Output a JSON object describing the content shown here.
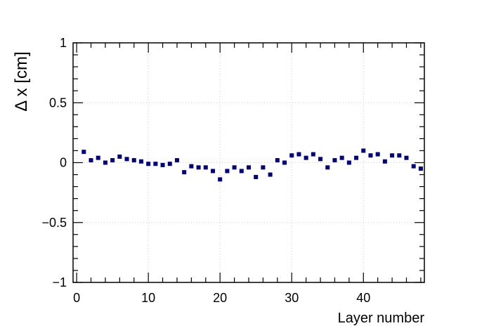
{
  "chart_data": {
    "type": "scatter",
    "title": "",
    "xlabel": "Layer number",
    "ylabel": "Δ x [cm]",
    "xlim": [
      -0.5,
      48.5
    ],
    "ylim": [
      -1,
      1
    ],
    "x_ticks": [
      {
        "value": 0,
        "label": "0"
      },
      {
        "value": 10,
        "label": "10"
      },
      {
        "value": 20,
        "label": "20"
      },
      {
        "value": 30,
        "label": "30"
      },
      {
        "value": 40,
        "label": "40"
      }
    ],
    "y_ticks": [
      {
        "value": -1,
        "label": "−1"
      },
      {
        "value": -0.5,
        "label": "−0.5"
      },
      {
        "value": 0,
        "label": "0"
      },
      {
        "value": 0.5,
        "label": "0.5"
      },
      {
        "value": 1,
        "label": "1"
      }
    ],
    "grid": true,
    "legend": "none",
    "marker_color": "#000080",
    "series": [
      {
        "x": [
          1,
          2,
          3,
          4,
          5,
          6,
          7,
          8,
          9,
          10,
          11,
          12,
          13,
          14,
          15,
          16,
          17,
          18,
          19,
          20,
          21,
          22,
          23,
          24,
          25,
          26,
          27,
          28,
          29,
          30,
          31,
          32,
          33,
          34,
          35,
          36,
          37,
          38,
          39,
          40,
          41,
          42,
          43,
          44,
          45,
          46,
          47,
          48
        ],
        "y": [
          0.09,
          0.02,
          0.04,
          0.0,
          0.02,
          0.05,
          0.03,
          0.02,
          0.01,
          -0.01,
          -0.01,
          -0.02,
          -0.01,
          0.02,
          -0.08,
          -0.03,
          -0.04,
          -0.04,
          -0.07,
          -0.14,
          -0.07,
          -0.04,
          -0.07,
          -0.04,
          -0.12,
          -0.04,
          -0.1,
          0.02,
          0.0,
          0.06,
          0.07,
          0.04,
          0.07,
          0.03,
          -0.04,
          0.02,
          0.04,
          0.0,
          0.04,
          0.1,
          0.06,
          0.07,
          0.01,
          0.06,
          0.06,
          0.04,
          -0.03,
          -0.05
        ]
      }
    ]
  }
}
